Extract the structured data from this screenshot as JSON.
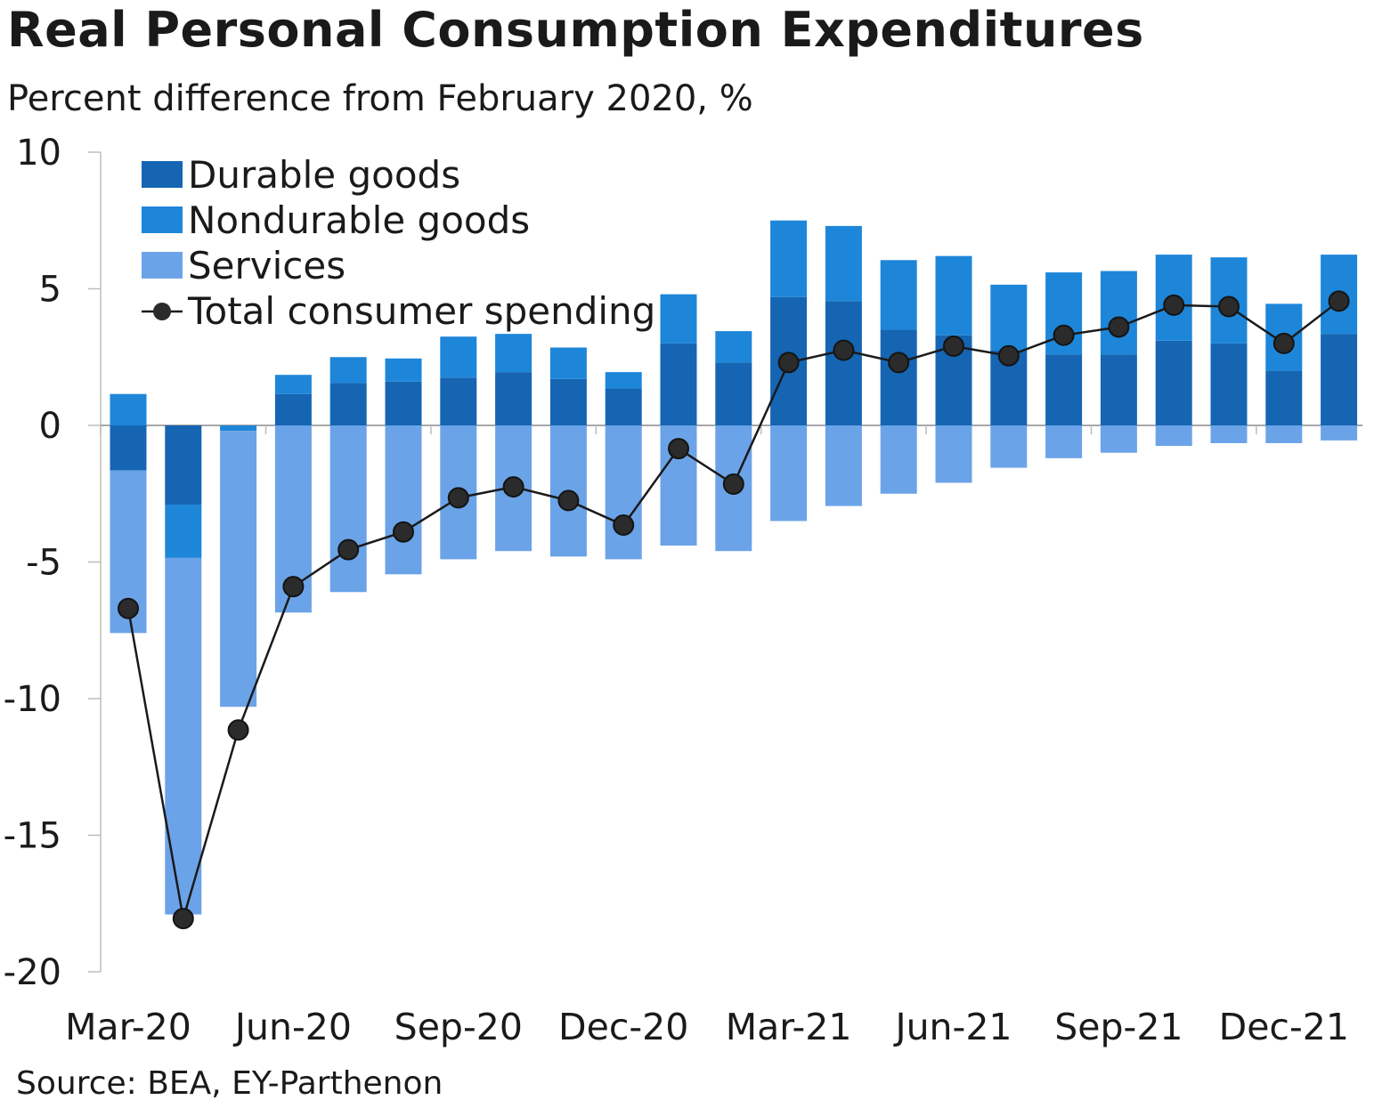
{
  "title": "Real Personal Consumption Expenditures",
  "subtitle": "Percent difference from February 2020, %",
  "source": "Source: BEA, EY-Parthenon",
  "chart_data": {
    "type": "bar",
    "stacked": true,
    "months": [
      "Mar-20",
      "Apr-20",
      "May-20",
      "Jun-20",
      "Jul-20",
      "Aug-20",
      "Sep-20",
      "Oct-20",
      "Nov-20",
      "Dec-20",
      "Jan-21",
      "Feb-21",
      "Mar-21",
      "Apr-21",
      "May-21",
      "Jun-21",
      "Jul-21",
      "Aug-21",
      "Sep-21",
      "Oct-21",
      "Nov-21",
      "Dec-21",
      "Jan-22"
    ],
    "x_tick_labels": [
      "Mar-20",
      "Jun-20",
      "Sep-20",
      "Dec-20",
      "Mar-21",
      "Jun-21",
      "Sep-21",
      "Dec-21"
    ],
    "ylim": [
      -20,
      10
    ],
    "yticks": [
      10,
      5,
      0,
      -5,
      -10,
      -15,
      -20
    ],
    "legend_position": "top-left",
    "series": [
      {
        "name": "Durable goods",
        "kind": "bar",
        "color": "#1565b3",
        "values": [
          -1.65,
          -2.9,
          0,
          1.15,
          1.55,
          1.6,
          1.75,
          1.95,
          1.7,
          1.35,
          3.0,
          2.3,
          4.7,
          4.55,
          3.5,
          3.3,
          2.75,
          2.6,
          2.6,
          3.1,
          3.0,
          2.0,
          3.35
        ]
      },
      {
        "name": "Nondurable goods",
        "kind": "bar",
        "color": "#1e86d9",
        "values": [
          1.15,
          -1.95,
          -0.2,
          0.7,
          0.95,
          0.85,
          1.5,
          1.4,
          1.15,
          0.6,
          1.8,
          1.15,
          2.8,
          2.75,
          2.55,
          2.9,
          2.4,
          3.0,
          3.05,
          3.15,
          3.15,
          2.45,
          2.9
        ]
      },
      {
        "name": "Services",
        "kind": "bar",
        "color": "#6ba3e8",
        "values": [
          -5.95,
          -13.05,
          -10.1,
          -6.85,
          -6.1,
          -5.45,
          -4.9,
          -4.6,
          -4.8,
          -4.9,
          -4.4,
          -4.6,
          -3.5,
          -2.95,
          -2.5,
          -2.1,
          -1.55,
          -1.2,
          -1.0,
          -0.75,
          -0.65,
          -0.65,
          -0.55
        ]
      },
      {
        "name": "Total consumer spending",
        "kind": "line",
        "color": "#1a1a1a",
        "values": [
          -6.7,
          -18.05,
          -11.15,
          -5.9,
          -4.55,
          -3.9,
          -2.65,
          -2.25,
          -2.75,
          -3.65,
          -0.85,
          -2.15,
          2.3,
          2.75,
          2.3,
          2.9,
          2.55,
          3.3,
          3.6,
          4.4,
          4.35,
          3.0,
          4.55
        ]
      }
    ]
  }
}
